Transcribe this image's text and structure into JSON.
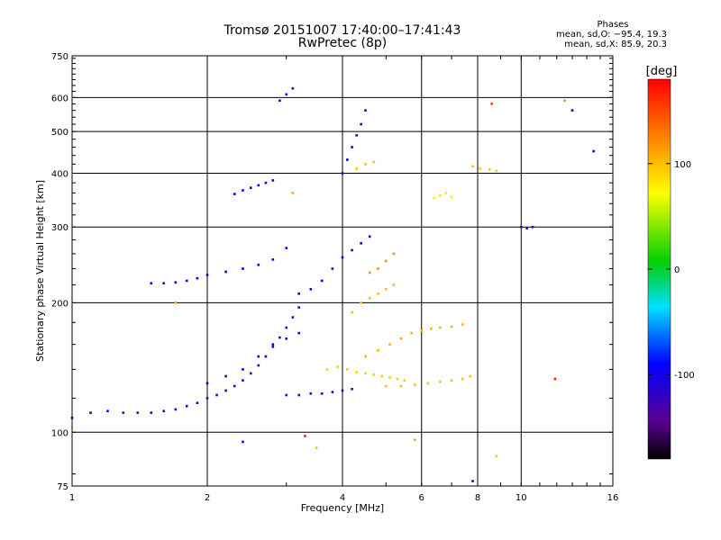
{
  "header": {
    "title": "Tromsø 20151007 17:40:00–17:41:43",
    "subtitle": "RwPretec (8p)",
    "phases_title": "Phases",
    "phases_o": "mean, sd,O: −95.4, 19.3",
    "phases_x": "mean, sd,X:  85.9, 20.3"
  },
  "chart_data": {
    "type": "scatter",
    "xlabel": "Frequency [MHz]",
    "ylabel": "Stationary phase Virtual Height [km]",
    "x_scale": "log",
    "y_scale": "log",
    "xlim": [
      1,
      16
    ],
    "ylim": [
      75,
      750
    ],
    "x_ticks": [
      1,
      2,
      4,
      6,
      8,
      10,
      16
    ],
    "x_tick_labels": [
      "1",
      "2",
      "4",
      "6",
      "8",
      "10",
      "16"
    ],
    "x_grid": [
      2,
      4,
      6,
      8,
      10
    ],
    "y_ticks": [
      75,
      100,
      200,
      300,
      400,
      500,
      600,
      750
    ],
    "y_tick_labels": [
      "75",
      "100",
      "200",
      "300",
      "400",
      "500",
      "600",
      "750"
    ],
    "y_grid": [
      100,
      200,
      300,
      400,
      500,
      600
    ],
    "grid": true,
    "colorbar": {
      "label": "[deg]",
      "range": [
        -180,
        180
      ],
      "ticks": [
        100,
        0,
        -100
      ],
      "tick_labels": [
        "100",
        "0",
        "-100"
      ]
    },
    "series": [
      {
        "phase": -100,
        "x": [
          1.0,
          1.1,
          1.2,
          1.3,
          1.4,
          1.5,
          1.6,
          1.7,
          1.8,
          1.9
        ],
        "y": [
          108,
          111,
          112,
          111,
          111,
          111,
          112,
          113,
          115,
          117
        ]
      },
      {
        "phase": -95,
        "x": [
          1.5,
          1.6,
          1.7,
          1.8,
          1.9,
          2.0,
          2.2,
          2.4,
          2.6,
          2.8,
          3.0
        ],
        "y": [
          222,
          222,
          223,
          225,
          228,
          232,
          236,
          240,
          245,
          252,
          268
        ]
      },
      {
        "phase": -100,
        "x": [
          2.3,
          2.4,
          2.5,
          2.6,
          2.7,
          2.8
        ],
        "y": [
          358,
          365,
          370,
          375,
          380,
          385
        ]
      },
      {
        "phase": -110,
        "x": [
          2.0,
          2.1,
          2.2,
          2.3,
          2.4,
          2.5,
          2.6,
          2.7,
          2.8,
          2.9,
          3.0,
          3.1,
          3.2
        ],
        "y": [
          120,
          122,
          125,
          128,
          132,
          137,
          143,
          150,
          158,
          166,
          175,
          185,
          195
        ]
      },
      {
        "phase": -90,
        "x": [
          2.0,
          2.2,
          2.4,
          2.6,
          2.8,
          3.0,
          3.2
        ],
        "y": [
          130,
          135,
          140,
          150,
          160,
          165,
          170
        ]
      },
      {
        "phase": -120,
        "x": [
          3.0,
          3.2,
          3.4,
          3.6,
          3.8,
          4.0,
          4.2
        ],
        "y": [
          122,
          122,
          123,
          123,
          124,
          125,
          126
        ]
      },
      {
        "phase": -90,
        "x": [
          3.2,
          3.4,
          3.6,
          3.8,
          4.0,
          4.2,
          4.4,
          4.6
        ],
        "y": [
          210,
          215,
          225,
          240,
          255,
          265,
          275,
          285
        ]
      },
      {
        "phase": -100,
        "x": [
          4.0,
          4.1,
          4.2,
          4.3,
          4.4,
          4.5
        ],
        "y": [
          400,
          430,
          460,
          490,
          520,
          560
        ]
      },
      {
        "phase": -110,
        "x": [
          2.9,
          3.0,
          3.1
        ],
        "y": [
          590,
          610,
          630
        ]
      },
      {
        "phase": 95,
        "x": [
          3.7,
          3.9,
          4.1,
          4.3,
          4.5,
          4.7,
          4.9,
          5.1,
          5.3,
          5.5
        ],
        "y": [
          140,
          142,
          140,
          138,
          137,
          136,
          135,
          134,
          133,
          132
        ]
      },
      {
        "phase": 105,
        "x": [
          4.5,
          4.8,
          5.1,
          5.4,
          5.7,
          6.0,
          6.3,
          6.6,
          7.0,
          7.4
        ],
        "y": [
          150,
          155,
          160,
          165,
          170,
          172,
          174,
          175,
          176,
          178
        ]
      },
      {
        "phase": 100,
        "x": [
          5.0,
          5.4,
          5.8,
          6.2,
          6.6,
          7.0,
          7.4,
          7.7
        ],
        "y": [
          128,
          128,
          129,
          130,
          131,
          132,
          133,
          135
        ]
      },
      {
        "phase": 100,
        "x": [
          4.2,
          4.4,
          4.6,
          4.8,
          5.0,
          5.2
        ],
        "y": [
          190,
          200,
          205,
          210,
          215,
          220
        ]
      },
      {
        "phase": 120,
        "x": [
          4.6,
          4.8,
          5.0,
          5.2
        ],
        "y": [
          235,
          240,
          250,
          260
        ]
      },
      {
        "phase": 80,
        "x": [
          6.4,
          6.6,
          6.8,
          7.0
        ],
        "y": [
          350,
          355,
          360,
          352
        ]
      },
      {
        "phase": 100,
        "x": [
          4.3,
          4.5,
          4.7
        ],
        "y": [
          410,
          420,
          425
        ]
      },
      {
        "phase": 95,
        "x": [
          7.8,
          8.1,
          8.5,
          8.8
        ],
        "y": [
          415,
          410,
          408,
          405
        ]
      },
      {
        "phase": -100,
        "x": [
          10.0,
          10.3,
          10.6
        ],
        "y": [
          300,
          298,
          300
        ]
      }
    ],
    "points": [
      {
        "x": 1.7,
        "y": 200,
        "phase": 110
      },
      {
        "x": 3.1,
        "y": 360,
        "phase": 110
      },
      {
        "x": 8.6,
        "y": 580,
        "phase": 150
      },
      {
        "x": 12.5,
        "y": 590,
        "phase": 30
      },
      {
        "x": 13.0,
        "y": 560,
        "phase": -100
      },
      {
        "x": 14.5,
        "y": 450,
        "phase": -100
      },
      {
        "x": 11.9,
        "y": 133,
        "phase": 170
      },
      {
        "x": 8.8,
        "y": 88,
        "phase": 50
      },
      {
        "x": 7.8,
        "y": 77,
        "phase": -100
      },
      {
        "x": 3.5,
        "y": 92,
        "phase": 100
      },
      {
        "x": 3.3,
        "y": 98,
        "phase": 170
      },
      {
        "x": 5.8,
        "y": 96,
        "phase": 110
      },
      {
        "x": 2.4,
        "y": 95,
        "phase": -100
      }
    ]
  }
}
